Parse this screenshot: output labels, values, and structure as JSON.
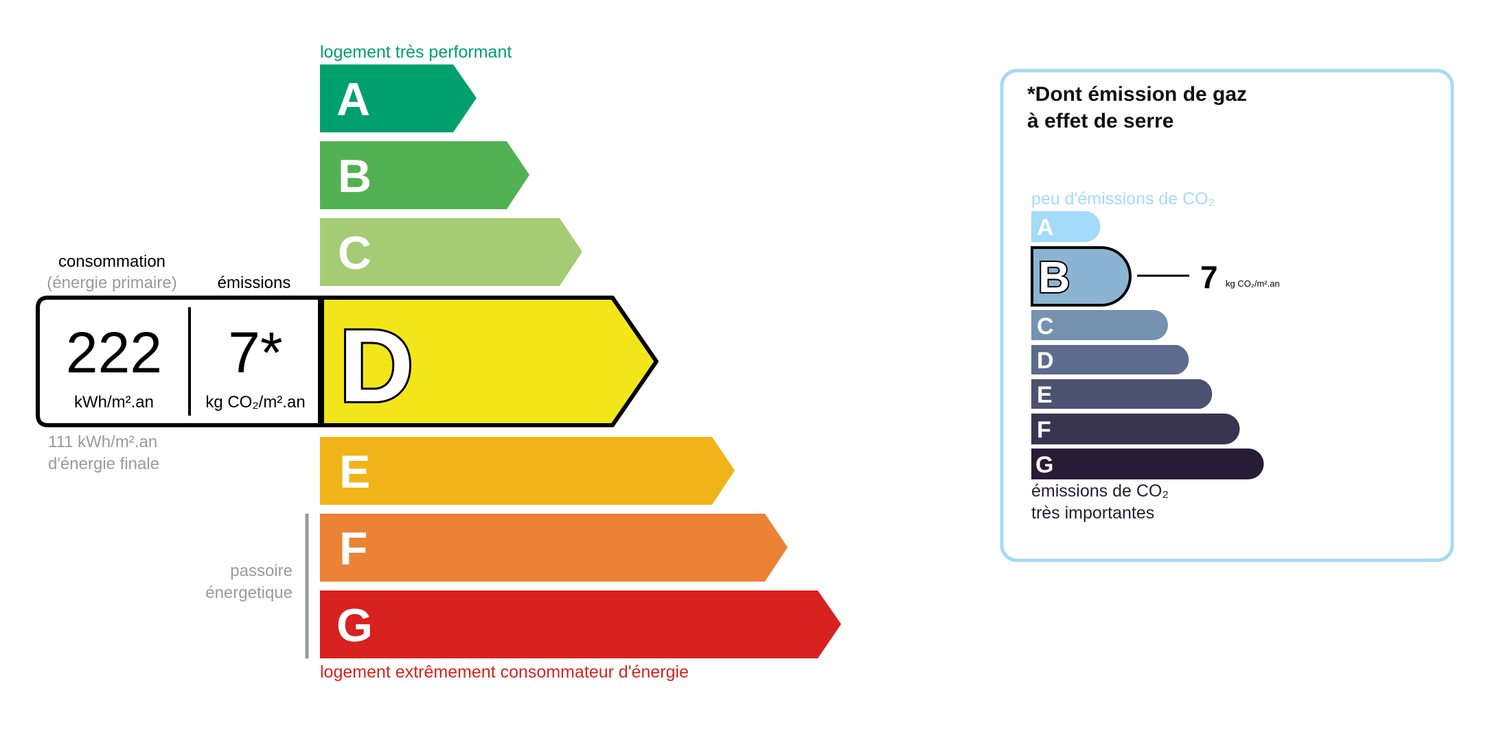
{
  "energy": {
    "top_label": "logement très performant",
    "bottom_label": "logement extrêmement consommateur d'énergie",
    "passoire_line1": "passoire",
    "passoire_line2": "énergetique",
    "classes": [
      {
        "letter": "A",
        "color": "#00a06d"
      },
      {
        "letter": "B",
        "color": "#52b153"
      },
      {
        "letter": "C",
        "color": "#a5cc74"
      },
      {
        "letter": "D",
        "color": "#f2e61a"
      },
      {
        "letter": "E",
        "color": "#f0b419"
      },
      {
        "letter": "F",
        "color": "#eb8235"
      },
      {
        "letter": "G",
        "color": "#d7221f"
      }
    ],
    "current_class": "D",
    "consumption_header": "consommation",
    "consumption_subheader": "(énergie primaire)",
    "emissions_header": "émissions",
    "consumption_value": "222",
    "consumption_unit": "kWh/m².an",
    "emissions_value": "7*",
    "emissions_unit": "kg CO₂/m².an",
    "final_energy_value": "111 kWh/m².an",
    "final_energy_label": "d'énergie finale"
  },
  "ghg": {
    "title_line1": "*Dont émission de gaz",
    "title_line2": "à effet de serre",
    "top_label": "peu d'émissions de CO₂",
    "bottom_label_line1": "émissions de CO₂",
    "bottom_label_line2": "très importantes",
    "classes": [
      {
        "letter": "A",
        "color": "#a4dbf8"
      },
      {
        "letter": "B",
        "color": "#8bb4d3"
      },
      {
        "letter": "C",
        "color": "#7692b1"
      },
      {
        "letter": "D",
        "color": "#5e6b8d"
      },
      {
        "letter": "E",
        "color": "#4c5170"
      },
      {
        "letter": "F",
        "color": "#393551"
      },
      {
        "letter": "G",
        "color": "#281b35"
      }
    ],
    "current_class": "B",
    "value": "7",
    "unit": "kg CO₂/m².an",
    "border_color": "#a6daf5"
  }
}
